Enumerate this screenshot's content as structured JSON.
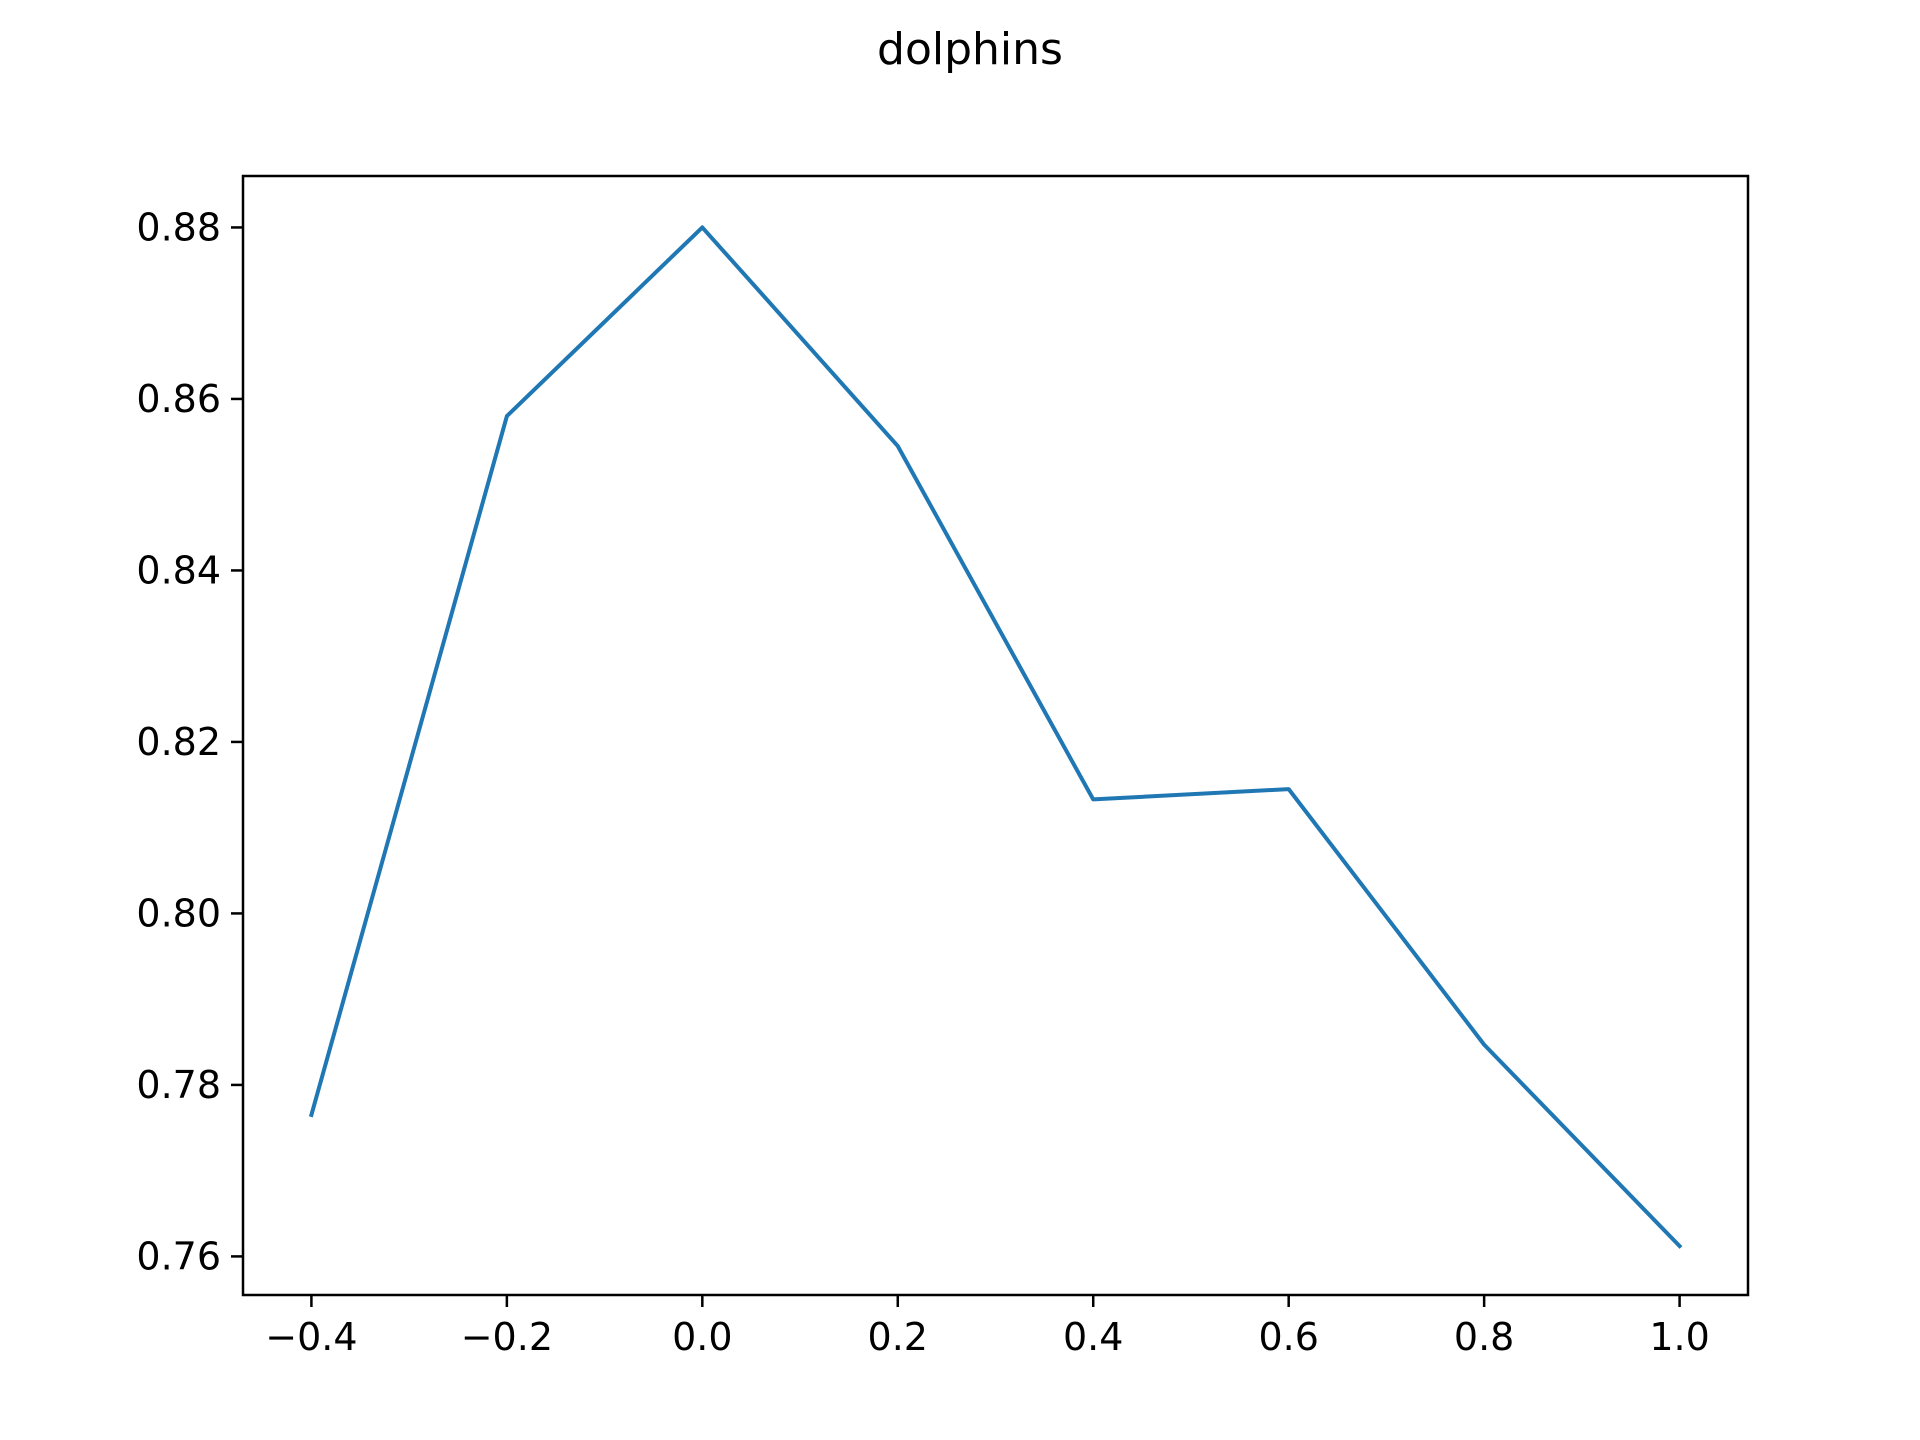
{
  "chart_data": {
    "type": "line",
    "title": "dolphins",
    "xlabel": "",
    "ylabel": "",
    "xlim": [
      -0.47,
      1.07
    ],
    "ylim": [
      0.7555,
      0.886
    ],
    "grid": false,
    "x_ticks": [
      -0.4,
      -0.2,
      0.0,
      0.2,
      0.4,
      0.6,
      0.8,
      1.0
    ],
    "x_tick_labels": [
      "−0.4",
      "−0.2",
      "0.0",
      "0.2",
      "0.4",
      "0.6",
      "0.8",
      "1.0"
    ],
    "y_ticks": [
      0.76,
      0.78,
      0.8,
      0.82,
      0.84,
      0.86,
      0.88
    ],
    "y_tick_labels": [
      "0.76",
      "0.78",
      "0.80",
      "0.82",
      "0.84",
      "0.86",
      "0.88"
    ],
    "series": [
      {
        "name": "dolphins",
        "color": "#1f77b4",
        "x": [
          -0.4,
          -0.2,
          0.0,
          0.2,
          0.4,
          0.6,
          0.8,
          1.0
        ],
        "values": [
          0.7765,
          0.858,
          0.88,
          0.8545,
          0.8133,
          0.8145,
          0.7847,
          0.7612
        ]
      }
    ]
  }
}
